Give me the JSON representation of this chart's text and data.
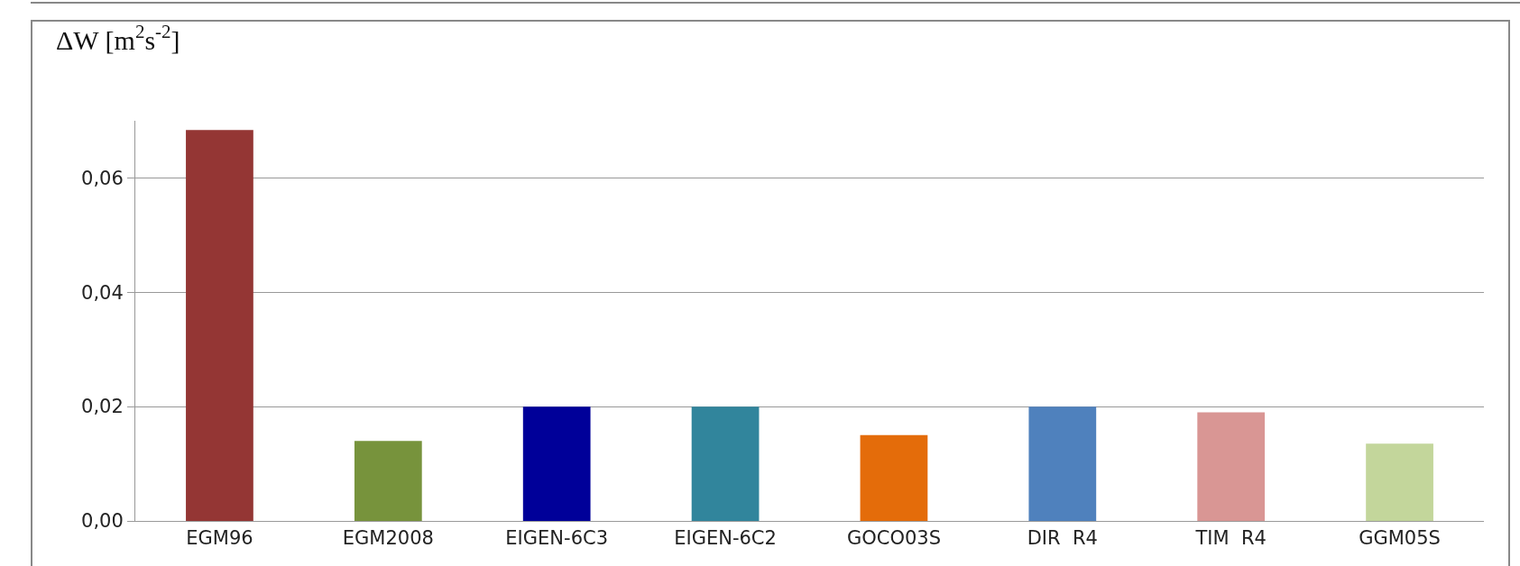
{
  "chart_data": {
    "type": "bar",
    "ylabel": "ΔW [m$^{2}$s$^{-2}$]",
    "categories": [
      "EGM96",
      "EGM2008",
      "EIGEN-6C3",
      "EIGEN-6C2",
      "GOCO03S",
      "DIR  R4",
      "TIM  R4",
      "GGM05S"
    ],
    "values": [
      0.0684,
      0.014,
      0.02,
      0.02,
      0.015,
      0.02,
      0.019,
      0.0135
    ],
    "colors": [
      "#943634",
      "#77933c",
      "#000099",
      "#31859c",
      "#e46c0a",
      "#4f81bd",
      "#d99694",
      "#c3d69b"
    ],
    "ylim": [
      0,
      0.07
    ],
    "yticks": [
      {
        "value": 0,
        "label": "0,00"
      },
      {
        "value": 0.02,
        "label": "0,02"
      },
      {
        "value": 0.04,
        "label": "0,04"
      },
      {
        "value": 0.06,
        "label": "0,06"
      }
    ],
    "grid": "y"
  }
}
